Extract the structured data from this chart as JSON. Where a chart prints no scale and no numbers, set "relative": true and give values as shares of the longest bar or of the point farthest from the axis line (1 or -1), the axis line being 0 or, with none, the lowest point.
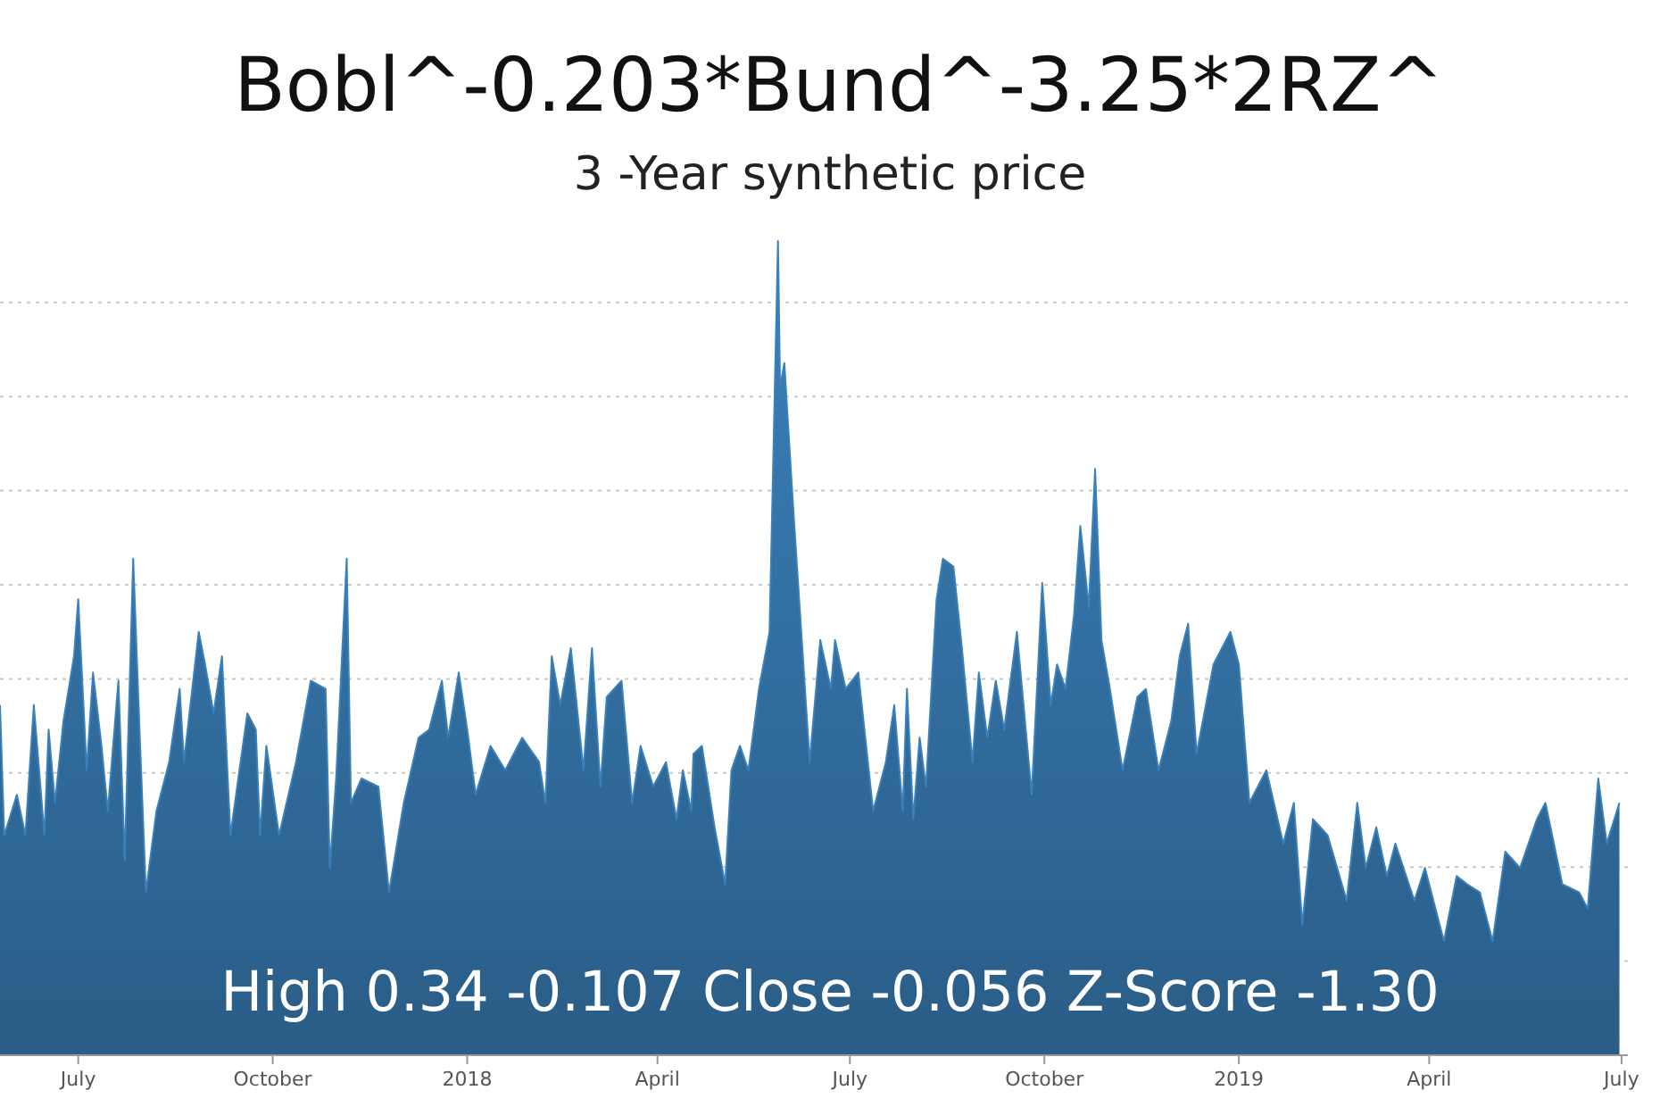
{
  "chart_data": {
    "type": "area",
    "title": "Bobl^-0.203*Bund^-3.25*2RZ^",
    "subtitle": "3 -Year synthetic price",
    "relative": true,
    "grid": "y",
    "color": "#3a80ba",
    "annotations": [
      "High 0.34 -0.107 Close -0.056 Z-Score -1.30"
    ],
    "xlim": [
      "2017-05-25",
      "2019-07-04"
    ],
    "xticks": [
      {
        "value": "2017-07-01",
        "label": "July"
      },
      {
        "value": "2017-10-01",
        "label": "October"
      },
      {
        "value": "2018-01-01",
        "label": "2018"
      },
      {
        "value": "2018-04-01",
        "label": "April"
      },
      {
        "value": "2018-07-01",
        "label": "July"
      },
      {
        "value": "2018-10-01",
        "label": "October"
      },
      {
        "value": "2019-01-01",
        "label": "2019"
      },
      {
        "value": "2019-04-01",
        "label": "April"
      },
      {
        "value": "2019-07-01",
        "label": "July"
      }
    ],
    "x": [
      "2017-05-25",
      "2017-05-27",
      "2017-06-02",
      "2017-06-06",
      "2017-06-10",
      "2017-06-15",
      "2017-06-17",
      "2017-06-20",
      "2017-06-24",
      "2017-06-29",
      "2017-07-01",
      "2017-07-05",
      "2017-07-08",
      "2017-07-12",
      "2017-07-15",
      "2017-07-20",
      "2017-07-23",
      "2017-07-27",
      "2017-07-30",
      "2017-08-02",
      "2017-08-07",
      "2017-08-13",
      "2017-08-18",
      "2017-08-20",
      "2017-08-27",
      "2017-08-30",
      "2017-09-03",
      "2017-09-07",
      "2017-09-11",
      "2017-09-19",
      "2017-09-23",
      "2017-09-25",
      "2017-09-28",
      "2017-10-04",
      "2017-10-12",
      "2017-10-19",
      "2017-10-26",
      "2017-10-28",
      "2017-10-31",
      "2017-11-05",
      "2017-11-07",
      "2017-11-12",
      "2017-11-20",
      "2017-11-25",
      "2017-12-02",
      "2017-12-09",
      "2017-12-14",
      "2017-12-20",
      "2017-12-23",
      "2017-12-28",
      "2018-01-01",
      "2018-01-05",
      "2018-01-12",
      "2018-01-19",
      "2018-01-27",
      "2018-02-04",
      "2018-02-07",
      "2018-02-10",
      "2018-02-14",
      "2018-02-19",
      "2018-02-25",
      "2018-03-01",
      "2018-03-05",
      "2018-03-08",
      "2018-03-15",
      "2018-03-20",
      "2018-03-24",
      "2018-03-30",
      "2018-04-05",
      "2018-04-10",
      "2018-04-13",
      "2018-04-17",
      "2018-04-18",
      "2018-04-22",
      "2018-04-28",
      "2018-05-03",
      "2018-05-06",
      "2018-05-10",
      "2018-05-14",
      "2018-05-19",
      "2018-05-24",
      "2018-05-28",
      "2018-05-29",
      "2018-05-31",
      "2018-06-04",
      "2018-06-06",
      "2018-06-12",
      "2018-06-17",
      "2018-06-22",
      "2018-06-24",
      "2018-06-29",
      "2018-07-05",
      "2018-07-12",
      "2018-07-18",
      "2018-07-22",
      "2018-07-26",
      "2018-07-28",
      "2018-07-31",
      "2018-08-03",
      "2018-08-06",
      "2018-08-11",
      "2018-08-14",
      "2018-08-19",
      "2018-08-23",
      "2018-08-28",
      "2018-08-31",
      "2018-09-04",
      "2018-09-08",
      "2018-09-12",
      "2018-09-18",
      "2018-09-25",
      "2018-09-30",
      "2018-10-04",
      "2018-10-07",
      "2018-10-11",
      "2018-10-15",
      "2018-10-18",
      "2018-10-22",
      "2018-10-25",
      "2018-10-28",
      "2018-11-01",
      "2018-11-07",
      "2018-11-14",
      "2018-11-18",
      "2018-11-24",
      "2018-11-30",
      "2018-12-04",
      "2018-12-08",
      "2018-12-12",
      "2018-12-20",
      "2018-12-28",
      "2019-01-01",
      "2019-01-06",
      "2019-01-14",
      "2019-01-22",
      "2019-01-27",
      "2019-01-31",
      "2019-02-05",
      "2019-02-12",
      "2019-02-21",
      "2019-02-26",
      "2019-03-02",
      "2019-03-07",
      "2019-03-12",
      "2019-03-16",
      "2019-03-25",
      "2019-03-30",
      "2019-04-04",
      "2019-04-08",
      "2019-04-14",
      "2019-04-19",
      "2019-04-25",
      "2019-05-01",
      "2019-05-07",
      "2019-05-14",
      "2019-05-22",
      "2019-05-26",
      "2019-06-03",
      "2019-06-11",
      "2019-06-15",
      "2019-06-20",
      "2019-06-24",
      "2019-06-30"
    ],
    "values": [
      0.43,
      0.27,
      0.32,
      0.27,
      0.43,
      0.27,
      0.4,
      0.31,
      0.41,
      0.49,
      0.56,
      0.35,
      0.47,
      0.38,
      0.3,
      0.46,
      0.24,
      0.61,
      0.4,
      0.2,
      0.3,
      0.36,
      0.45,
      0.36,
      0.52,
      0.48,
      0.42,
      0.49,
      0.27,
      0.42,
      0.4,
      0.27,
      0.38,
      0.27,
      0.36,
      0.46,
      0.45,
      0.23,
      0.34,
      0.61,
      0.31,
      0.34,
      0.33,
      0.2,
      0.31,
      0.39,
      0.4,
      0.46,
      0.39,
      0.47,
      0.4,
      0.32,
      0.38,
      0.35,
      0.39,
      0.36,
      0.31,
      0.49,
      0.43,
      0.5,
      0.35,
      0.5,
      0.33,
      0.44,
      0.46,
      0.31,
      0.38,
      0.33,
      0.36,
      0.29,
      0.35,
      0.3,
      0.37,
      0.38,
      0.28,
      0.21,
      0.35,
      0.38,
      0.35,
      0.45,
      0.52,
      1,
      0.82,
      0.85,
      0.68,
      0.6,
      0.36,
      0.51,
      0.45,
      0.51,
      0.45,
      0.47,
      0.3,
      0.36,
      0.43,
      0.3,
      0.45,
      0.29,
      0.39,
      0.33,
      0.56,
      0.61,
      0.6,
      0.5,
      0.36,
      0.47,
      0.39,
      0.46,
      0.4,
      0.52,
      0.32,
      0.58,
      0.43,
      0.48,
      0.45,
      0.54,
      0.65,
      0.55,
      0.72,
      0.51,
      0.45,
      0.35,
      0.44,
      0.45,
      0.35,
      0.41,
      0.49,
      0.53,
      0.37,
      0.48,
      0.52,
      0.48,
      0.31,
      0.35,
      0.26,
      0.31,
      0.16,
      0.29,
      0.27,
      0.19,
      0.31,
      0.23,
      0.28,
      0.22,
      0.26,
      0.19,
      0.23,
      0.18,
      0.14,
      0.22,
      0.21,
      0.2,
      0.14,
      0.25,
      0.23,
      0.29,
      0.31,
      0.21,
      0.2,
      0.18,
      0.34,
      0.26,
      0.31
    ]
  }
}
